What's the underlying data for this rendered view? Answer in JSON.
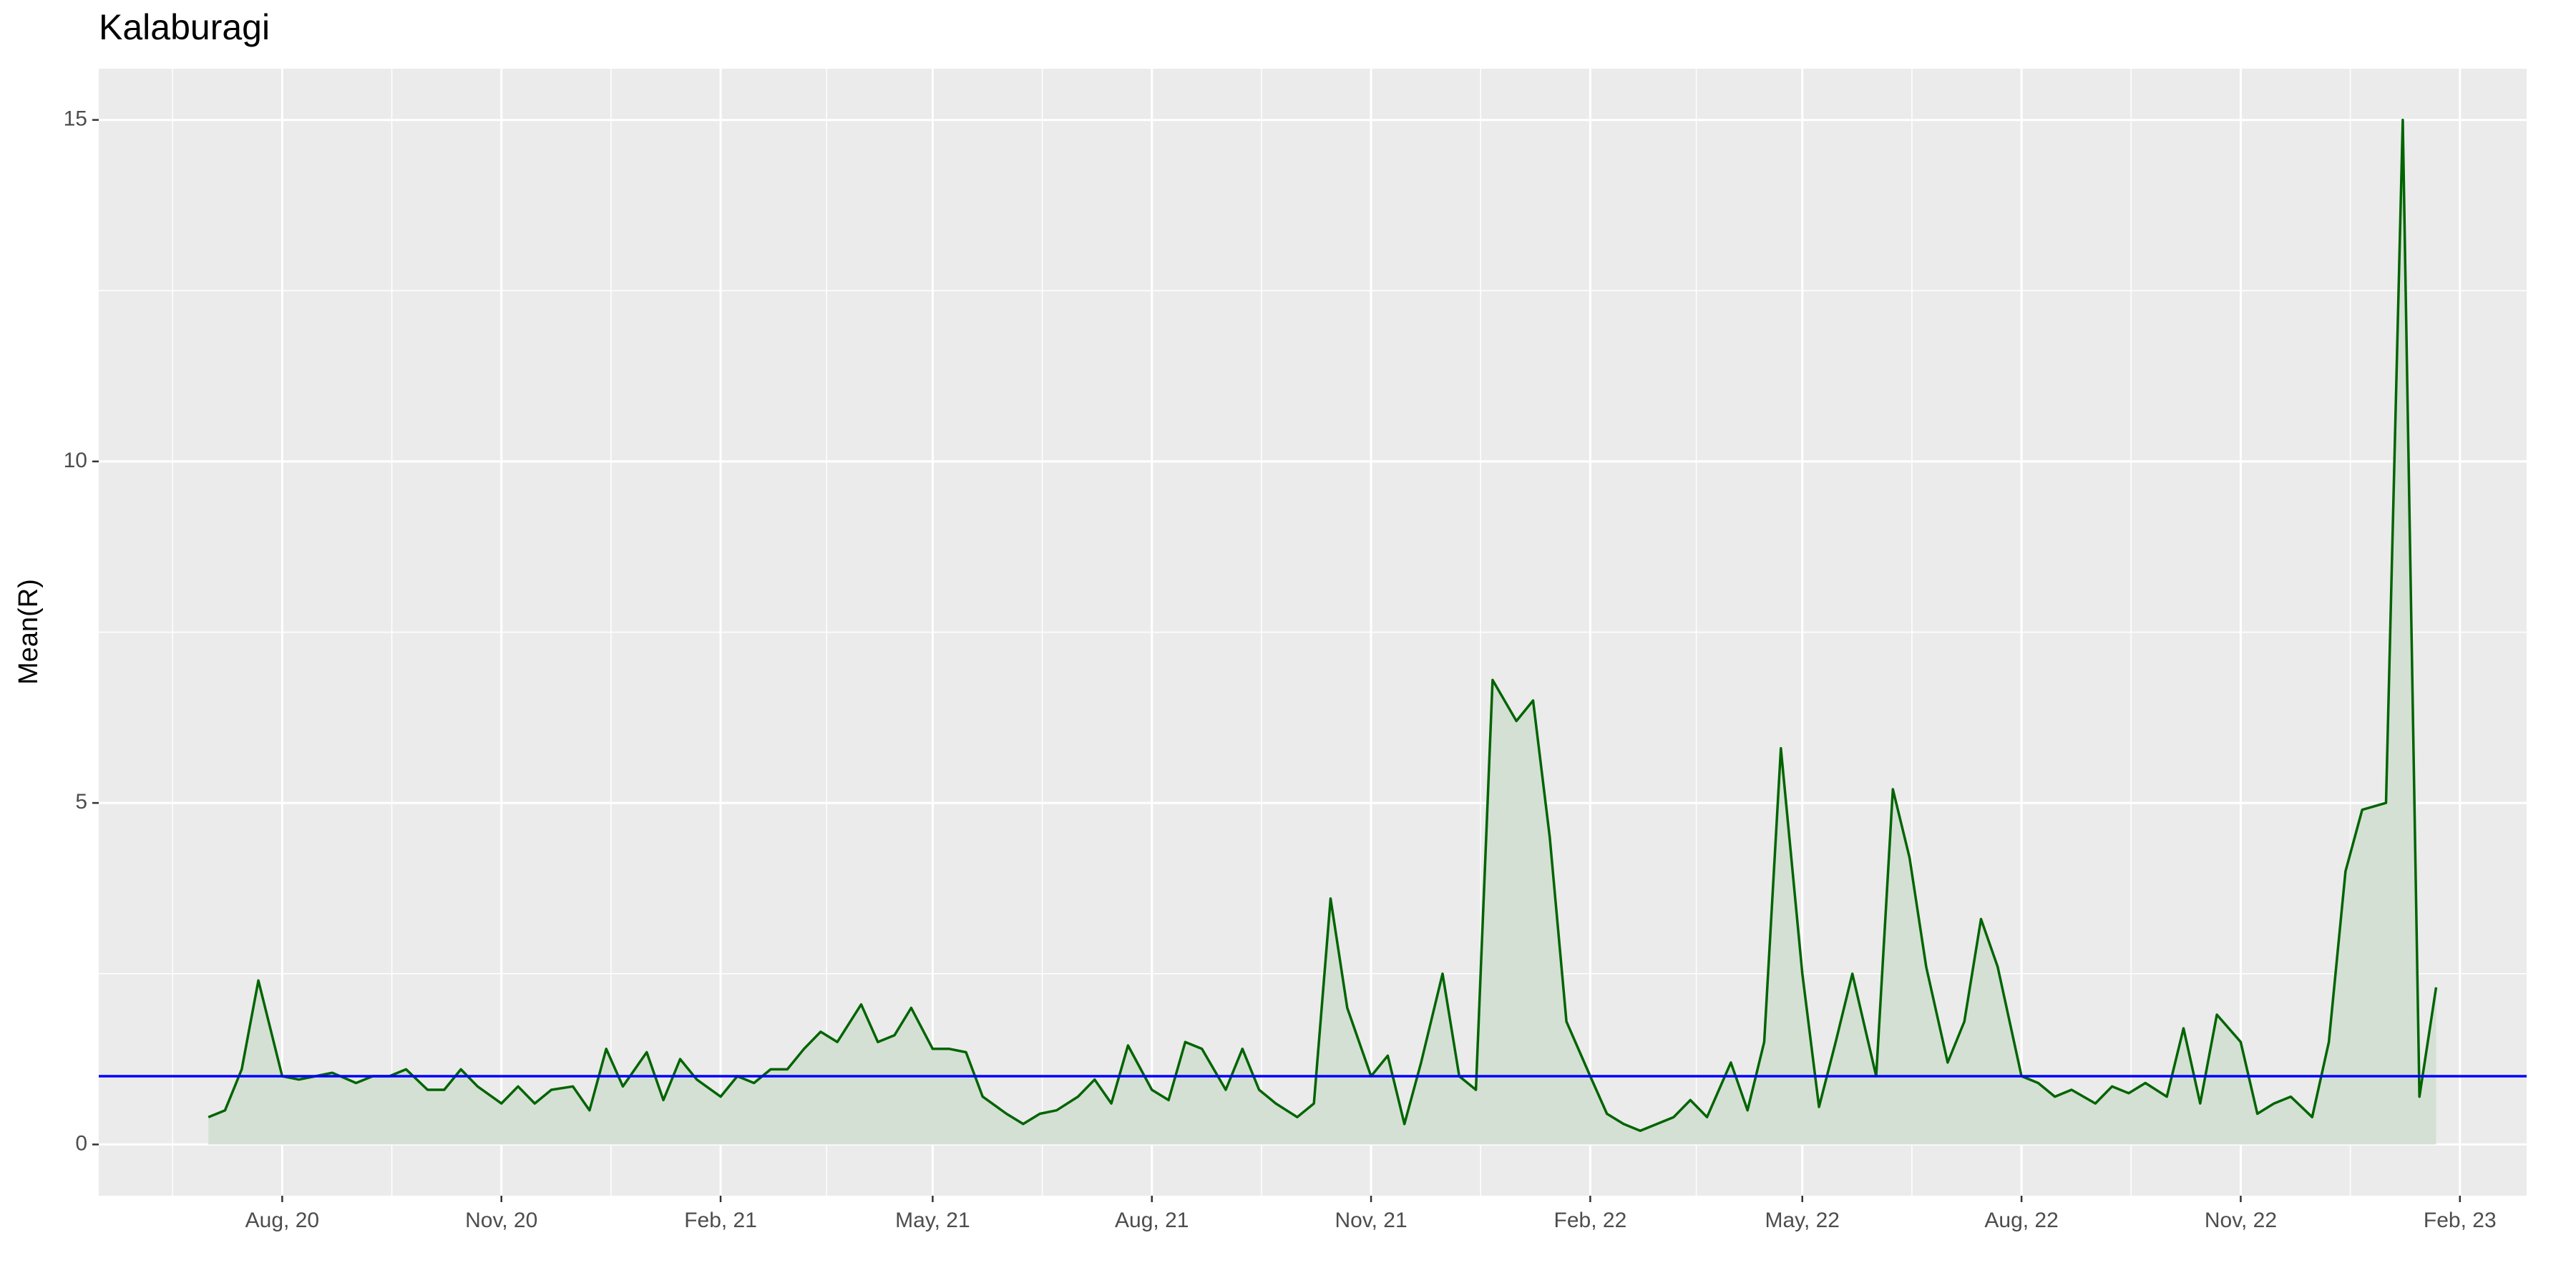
{
  "chart_data": {
    "type": "area-line",
    "title": "Kalaburagi",
    "ylabel": "Mean(R)",
    "x": [
      "2020-07-01",
      "2020-07-08",
      "2020-07-15",
      "2020-07-22",
      "2020-08-01",
      "2020-08-08",
      "2020-08-15",
      "2020-08-22",
      "2020-09-01",
      "2020-09-08",
      "2020-09-15",
      "2020-09-22",
      "2020-10-01",
      "2020-10-08",
      "2020-10-15",
      "2020-10-22",
      "2020-11-01",
      "2020-11-08",
      "2020-11-15",
      "2020-11-22",
      "2020-12-01",
      "2020-12-08",
      "2020-12-15",
      "2020-12-22",
      "2021-01-01",
      "2021-01-08",
      "2021-01-15",
      "2021-01-22",
      "2021-02-01",
      "2021-02-08",
      "2021-02-15",
      "2021-02-22",
      "2021-03-01",
      "2021-03-08",
      "2021-03-15",
      "2021-03-22",
      "2021-04-01",
      "2021-04-08",
      "2021-04-15",
      "2021-04-22",
      "2021-05-01",
      "2021-05-08",
      "2021-05-15",
      "2021-05-22",
      "2021-06-01",
      "2021-06-08",
      "2021-06-15",
      "2021-06-22",
      "2021-07-01",
      "2021-07-08",
      "2021-07-15",
      "2021-07-22",
      "2021-08-01",
      "2021-08-08",
      "2021-08-15",
      "2021-08-22",
      "2021-09-01",
      "2021-09-08",
      "2021-09-15",
      "2021-09-22",
      "2021-10-01",
      "2021-10-08",
      "2021-10-15",
      "2021-10-22",
      "2021-11-01",
      "2021-11-08",
      "2021-11-15",
      "2021-11-22",
      "2021-12-01",
      "2021-12-08",
      "2021-12-15",
      "2021-12-22",
      "2022-01-01",
      "2022-01-08",
      "2022-01-15",
      "2022-01-22",
      "2022-02-01",
      "2022-02-08",
      "2022-02-15",
      "2022-02-22",
      "2022-03-01",
      "2022-03-08",
      "2022-03-15",
      "2022-03-22",
      "2022-04-01",
      "2022-04-08",
      "2022-04-15",
      "2022-04-22",
      "2022-05-01",
      "2022-05-08",
      "2022-05-15",
      "2022-05-22",
      "2022-06-01",
      "2022-06-08",
      "2022-06-15",
      "2022-06-22",
      "2022-07-01",
      "2022-07-08",
      "2022-07-15",
      "2022-07-22",
      "2022-08-01",
      "2022-08-08",
      "2022-08-15",
      "2022-08-22",
      "2022-09-01",
      "2022-09-08",
      "2022-09-15",
      "2022-09-22",
      "2022-10-01",
      "2022-10-08",
      "2022-10-15",
      "2022-10-22",
      "2022-11-01",
      "2022-11-08",
      "2022-11-15",
      "2022-11-22",
      "2022-12-01",
      "2022-12-08",
      "2022-12-15",
      "2022-12-22",
      "2023-01-01",
      "2023-01-08",
      "2023-01-15",
      "2023-01-22"
    ],
    "values": [
      0.4,
      0.5,
      1.1,
      2.4,
      1.0,
      0.95,
      1.0,
      1.05,
      0.9,
      1.0,
      1.0,
      1.1,
      0.8,
      0.8,
      1.1,
      0.85,
      0.6,
      0.85,
      0.6,
      0.8,
      0.85,
      0.5,
      1.4,
      0.85,
      1.35,
      0.65,
      1.25,
      0.95,
      0.7,
      1.0,
      0.9,
      1.1,
      1.1,
      1.4,
      1.65,
      1.5,
      2.05,
      1.5,
      1.6,
      2.0,
      1.4,
      1.4,
      1.35,
      0.7,
      0.45,
      0.3,
      0.45,
      0.5,
      0.7,
      0.95,
      0.6,
      1.45,
      0.8,
      0.65,
      1.5,
      1.4,
      0.8,
      1.4,
      0.8,
      0.6,
      0.4,
      0.6,
      3.6,
      2.0,
      1.0,
      1.3,
      0.3,
      1.2,
      2.5,
      1.0,
      0.8,
      6.8,
      6.2,
      6.5,
      4.5,
      1.8,
      1.0,
      0.45,
      0.3,
      0.2,
      0.3,
      0.4,
      0.65,
      0.4,
      1.2,
      0.5,
      1.5,
      5.8,
      2.5,
      0.55,
      1.5,
      2.5,
      1.0,
      5.2,
      4.2,
      2.6,
      1.2,
      1.8,
      3.3,
      2.6,
      1.0,
      0.9,
      0.7,
      0.8,
      0.6,
      0.85,
      0.75,
      0.9,
      0.7,
      1.7,
      0.6,
      1.9,
      1.5,
      0.45,
      0.6,
      0.7,
      0.4,
      1.5,
      4.0,
      4.9,
      5.0,
      15.0,
      0.7,
      2.3
    ],
    "color": "#006400",
    "fill_color": "#d4e0d4",
    "hline": 1,
    "hline_color": "#0000ff",
    "xlim": [
      "2020-05-16",
      "2023-03-01"
    ],
    "xticks": [
      {
        "value": "2020-08-01",
        "label": "Aug, 20"
      },
      {
        "value": "2020-11-01",
        "label": "Nov, 20"
      },
      {
        "value": "2021-02-01",
        "label": "Feb, 21"
      },
      {
        "value": "2021-05-01",
        "label": "May, 21"
      },
      {
        "value": "2021-08-01",
        "label": "Aug, 21"
      },
      {
        "value": "2021-11-01",
        "label": "Nov, 21"
      },
      {
        "value": "2022-02-01",
        "label": "Feb, 22"
      },
      {
        "value": "2022-05-01",
        "label": "May, 22"
      },
      {
        "value": "2022-08-01",
        "label": "Aug, 22"
      },
      {
        "value": "2022-11-01",
        "label": "Nov, 22"
      },
      {
        "value": "2023-02-01",
        "label": "Feb, 23"
      }
    ],
    "ylim": [
      -0.75,
      15.75
    ],
    "yticks": [
      0,
      5,
      10,
      15
    ],
    "grid": true
  }
}
